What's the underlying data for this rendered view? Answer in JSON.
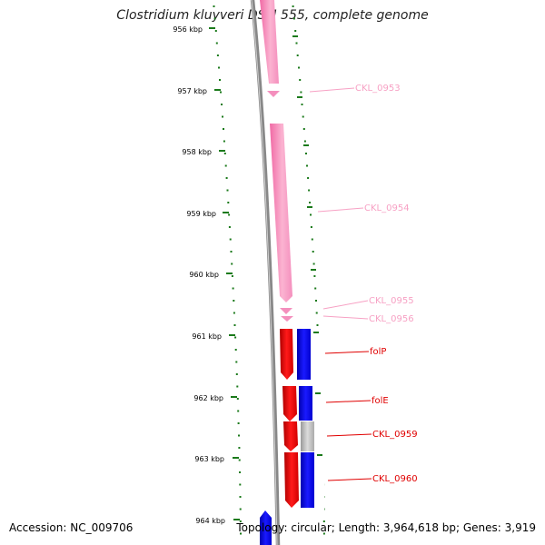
{
  "title": "Clostridium kluyveri DSM 555, complete genome",
  "footer": {
    "accession": "Accession: NC_009706",
    "topology": "Topology: circular; Length: 3,964,618 bp; Genes: 3,919"
  },
  "scale": {
    "ticks": [
      "956 kbp",
      "957 kbp",
      "958 kbp",
      "959 kbp",
      "960 kbp",
      "961 kbp",
      "962 kbp",
      "963 kbp",
      "964 kbp"
    ]
  },
  "genes": [
    {
      "label": "CKL_0953",
      "strand": "minus",
      "color": "#f7a1c4"
    },
    {
      "label": "CKL_0954",
      "strand": "minus",
      "color": "#f7a1c4"
    },
    {
      "label": "CKL_0955",
      "strand": "minus",
      "color": "#f7a1c4"
    },
    {
      "label": "CKL_0956",
      "strand": "minus",
      "color": "#f7a1c4"
    },
    {
      "label": "folP",
      "strand": "minus",
      "color": "#ff0000"
    },
    {
      "label": "folE",
      "strand": "minus",
      "color": "#ff0000"
    },
    {
      "label": "CKL_0959",
      "strand": "minus",
      "color": "#ff0000"
    },
    {
      "label": "CKL_0960",
      "strand": "minus",
      "color": "#ff0000"
    }
  ],
  "colors": {
    "backbone": "#888888",
    "scale_ticks": "#1b7a1b",
    "cds_blue": "#0000ff",
    "cds_grey": "#bdbdbd"
  }
}
